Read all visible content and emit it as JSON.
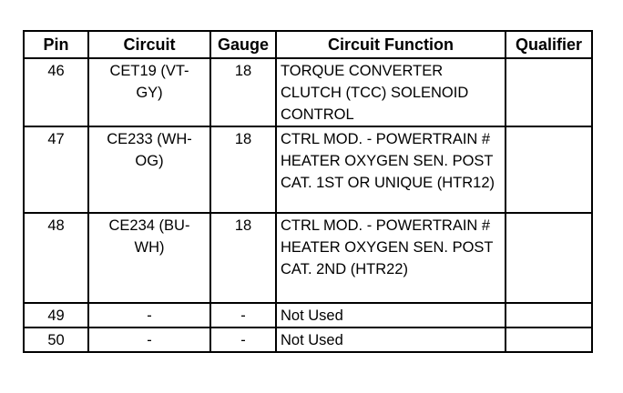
{
  "table": {
    "headers": [
      "Pin",
      "Circuit",
      "Gauge",
      "Circuit Function",
      "Qualifier"
    ],
    "rows": [
      {
        "pin": "46",
        "circuit": "CET19 (VT-GY)",
        "gauge": "18",
        "function": "TORQUE CONVERTER CLUTCH (TCC) SOLENOID CONTROL",
        "qualifier": ""
      },
      {
        "pin": "47",
        "circuit": "CE233 (WH-OG)",
        "gauge": "18",
        "function": "CTRL MOD. - POWERTRAIN # HEATER OXYGEN SEN. POST CAT. 1ST OR UNIQUE (HTR12)",
        "qualifier": ""
      },
      {
        "pin": "48",
        "circuit": "CE234 (BU-WH)",
        "gauge": "18",
        "function": "CTRL MOD. - POWERTRAIN # HEATER OXYGEN SEN. POST CAT. 2ND (HTR22)",
        "qualifier": ""
      },
      {
        "pin": "49",
        "circuit": "-",
        "gauge": "-",
        "function": "Not Used",
        "qualifier": ""
      },
      {
        "pin": "50",
        "circuit": "-",
        "gauge": "-",
        "function": "Not Used",
        "qualifier": ""
      }
    ]
  }
}
